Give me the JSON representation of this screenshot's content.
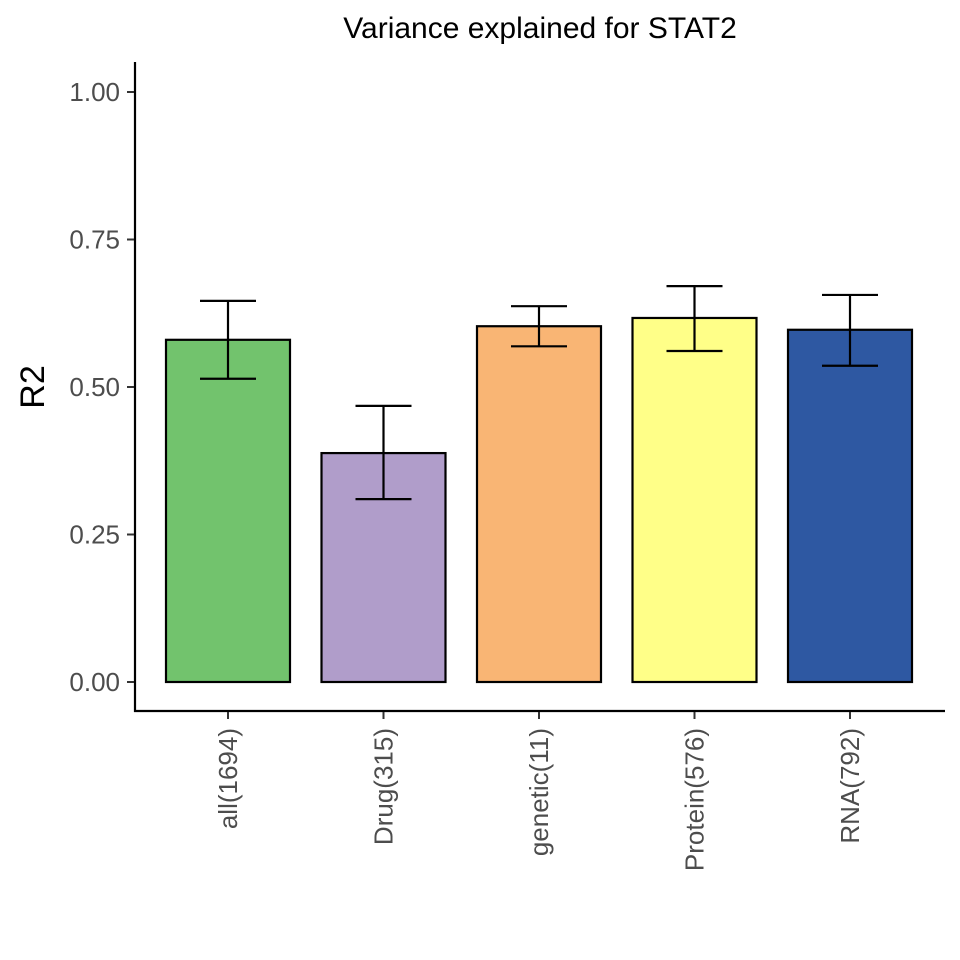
{
  "chart_data": {
    "type": "bar",
    "title": "Variance explained for STAT2",
    "xlabel": "",
    "ylabel": "R2",
    "ylim": [
      -0.045,
      1.05
    ],
    "yticks": [
      0.0,
      0.25,
      0.5,
      0.75,
      1.0
    ],
    "ytick_labels": [
      "0.00",
      "0.25",
      "0.50",
      "0.75",
      "1.00"
    ],
    "grid": false,
    "legend": "none",
    "categories": [
      "all(1694)",
      "Drug(315)",
      "genetic(11)",
      "Protein(576)",
      "RNA(792)"
    ],
    "values": [
      0.58,
      0.388,
      0.603,
      0.617,
      0.597
    ],
    "error_low": [
      0.514,
      0.31,
      0.569,
      0.561,
      0.536
    ],
    "error_high": [
      0.646,
      0.468,
      0.637,
      0.671,
      0.656
    ],
    "colors": [
      "#72c36d",
      "#b09dca",
      "#f9b574",
      "#ffff88",
      "#2e58a2"
    ]
  }
}
